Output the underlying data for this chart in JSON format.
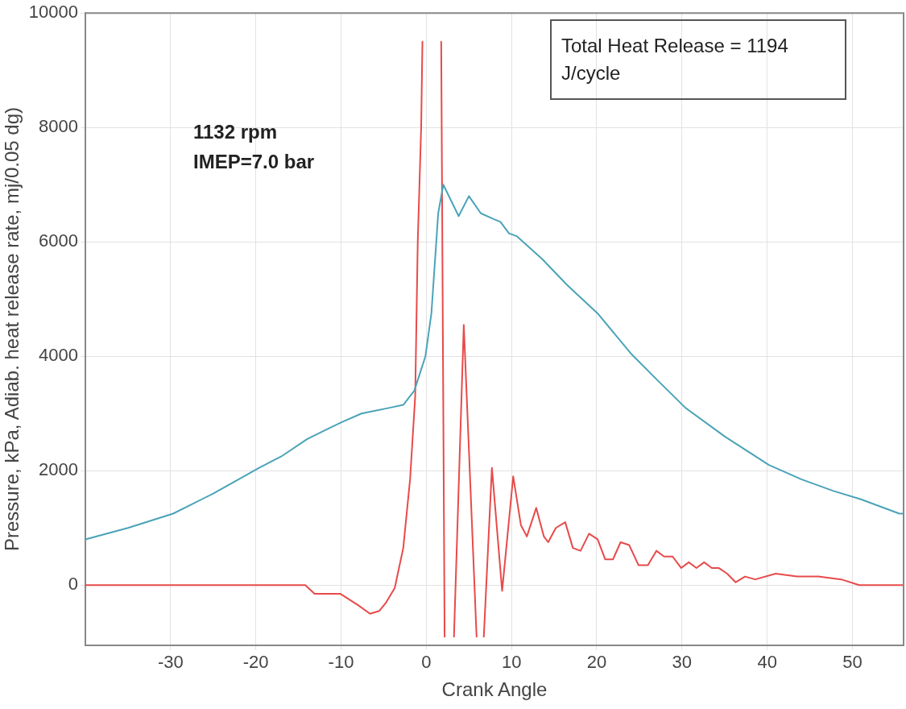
{
  "chart_data": {
    "type": "line",
    "xlabel": "Crank Angle",
    "ylabel": "Pressure, kPa, Adiab. heat release rate, mj/0.05 dg)",
    "xlim": [
      -40,
      56
    ],
    "xticks": [
      -30,
      -20,
      -10,
      0,
      10,
      20,
      30,
      40,
      50
    ],
    "ylim": [
      -1050,
      10000
    ],
    "yticks": [
      0,
      2000,
      4000,
      6000,
      8000,
      10000
    ],
    "grid": true,
    "legend": false,
    "marker": "none",
    "line_style": "solid",
    "annotations": [
      "Total Heat Release = 1194 J/cycle",
      "1132 rpm",
      "IMEP=7.0 bar"
    ],
    "series": [
      {
        "color": "#4aa3b8",
        "x": [
          -40,
          -35,
          -29.7,
          -25,
          -19.6,
          -17,
          -14,
          -12,
          -9.9,
          -7.6,
          -4.3,
          -2.7,
          -1.4,
          -0.1,
          0.6,
          1.4,
          2,
          3.8,
          5,
          6.4,
          7.9,
          8.7,
          9.7,
          10.6,
          13.6,
          16.5,
          20.1,
          24,
          27,
          30.4,
          35,
          40.2,
          44,
          47.7,
          51,
          55.5,
          56
        ],
        "values": [
          800,
          1000,
          1250,
          1600,
          2050,
          2250,
          2550,
          2700,
          2850,
          3000,
          3100,
          3150,
          3400,
          4000,
          4750,
          6500,
          7000,
          6450,
          6800,
          6500,
          6400,
          6350,
          6150,
          6100,
          5700,
          5250,
          4750,
          4050,
          3600,
          3100,
          2600,
          2100,
          1850,
          1650,
          1500,
          1250,
          1250
        ]
      },
      {
        "color": "#e84a4a",
        "x": [
          -40,
          -14.2,
          -13.1,
          -10.1,
          -8,
          -6.6,
          -5.5,
          -4.7,
          -3.7,
          -2.7,
          -1.9,
          -1.3,
          -1,
          -0.6,
          -0.45,
          0.6,
          1.75,
          2.15,
          2.7,
          3.25,
          4.4,
          5.9,
          6.4,
          6.75,
          7.7,
          8.9,
          10.2,
          11.1,
          11.8,
          12.9,
          13.8,
          14.3,
          15.2,
          16.3,
          17.2,
          18.1,
          19.1,
          20.1,
          21,
          21.9,
          22.8,
          23.8,
          24.9,
          26,
          27,
          27.9,
          28.9,
          29.9,
          30.8,
          31.7,
          32.6,
          33.5,
          34.3,
          35.3,
          36.3,
          37.4,
          38.6,
          41,
          43.5,
          46,
          48.7,
          50.8,
          56
        ],
        "values": [
          0,
          0,
          -150,
          -150,
          -350,
          -500,
          -450,
          -300,
          -50,
          650,
          1850,
          3300,
          6000,
          8000,
          9500,
          null,
          9500,
          -900,
          null,
          -900,
          4550,
          -900,
          null,
          -900,
          2050,
          -100,
          1900,
          1050,
          850,
          1350,
          850,
          750,
          1000,
          1100,
          650,
          600,
          900,
          800,
          450,
          450,
          750,
          700,
          350,
          350,
          600,
          500,
          500,
          300,
          400,
          300,
          400,
          300,
          300,
          200,
          50,
          150,
          100,
          200,
          150,
          150,
          100,
          0,
          0
        ]
      }
    ]
  }
}
